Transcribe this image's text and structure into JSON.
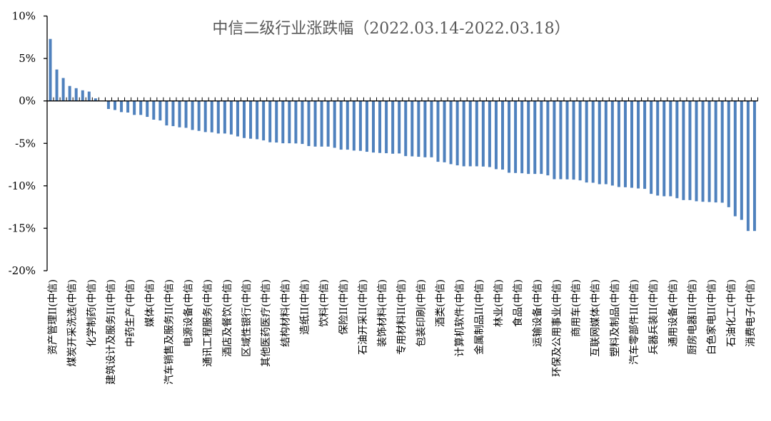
{
  "chart_data": {
    "type": "bar",
    "title": "中信二级行业涨跌幅（2022.03.14-2022.03.18）",
    "xlabel": "",
    "ylabel": "",
    "ylim": [
      -20,
      10
    ],
    "yticks": [
      "10%",
      "5%",
      "0%",
      "-5%",
      "-10%",
      "-15%",
      "-20%"
    ],
    "ytick_values": [
      10,
      5,
      0,
      -5,
      -10,
      -15,
      -20
    ],
    "grid": false,
    "legend": "none",
    "bar_color": "#4f81bd",
    "printed_labels": [
      "资产管理II(中信)",
      "煤炭开采洗选(中信)",
      "化学制药(中信)",
      "建筑设计及服务II(中信)",
      "中药生产(中信)",
      "媒体(中信)",
      "汽车销售及服务II(中信)",
      "电源设备(中信)",
      "通讯工程服务(中信)",
      "酒店及餐饮(中信)",
      "区域性银行(中信)",
      "其他医药医疗(中信)",
      "结构材料(中信)",
      "造纸II(中信)",
      "饮料(中信)",
      "保险II(中信)",
      "石油开采II(中信)",
      "装饰材料(中信)",
      "专用材料II(中信)",
      "包装印刷(中信)",
      "酒类(中信)",
      "计算机软件(中信)",
      "金属制品II(中信)",
      "林业(中信)",
      "食品(中信)",
      "运输设备(中信)",
      "环保及公用事业(中信)",
      "商用车(中信)",
      "互联网媒体(中信)",
      "塑料及制品(中信)",
      "汽车零部件II(中信)",
      "兵器兵装II(中信)",
      "通用设备(中信)",
      "厨房电器II(中信)",
      "白色家电II(中信)",
      "石油化工(中信)",
      "消费电子(中信)"
    ],
    "label_every": 3,
    "values": [
      7.3,
      3.7,
      2.7,
      1.76,
      1.5,
      1.25,
      1.1,
      0.3,
      -0.02,
      -0.95,
      -1.07,
      -1.32,
      -1.37,
      -1.65,
      -1.65,
      -1.88,
      -2.21,
      -2.3,
      -2.89,
      -2.97,
      -3.11,
      -3.17,
      -3.42,
      -3.53,
      -3.67,
      -3.7,
      -3.84,
      -3.84,
      -3.95,
      -4.18,
      -4.37,
      -4.45,
      -4.51,
      -4.65,
      -4.87,
      -4.9,
      -4.99,
      -4.99,
      -5.01,
      -5.07,
      -5.32,
      -5.38,
      -5.38,
      -5.38,
      -5.52,
      -5.74,
      -5.74,
      -5.85,
      -5.88,
      -5.99,
      -6.08,
      -6.13,
      -6.16,
      -6.22,
      -6.19,
      -6.5,
      -6.53,
      -6.58,
      -6.64,
      -6.64,
      -7.17,
      -7.23,
      -7.45,
      -7.59,
      -7.7,
      -7.7,
      -7.7,
      -7.73,
      -7.79,
      -8.04,
      -8.09,
      -8.46,
      -8.49,
      -8.52,
      -8.6,
      -8.6,
      -8.6,
      -8.77,
      -9.22,
      -9.22,
      -9.24,
      -9.27,
      -9.36,
      -9.61,
      -9.64,
      -9.81,
      -9.81,
      -9.97,
      -10.14,
      -10.17,
      -10.23,
      -10.31,
      -10.36,
      -10.95,
      -11.15,
      -11.23,
      -11.23,
      -11.46,
      -11.68,
      -11.68,
      -11.82,
      -11.88,
      -11.91,
      -11.96,
      -11.99,
      -12.52,
      -13.59,
      -14.01,
      -15.32,
      -15.32
    ]
  }
}
